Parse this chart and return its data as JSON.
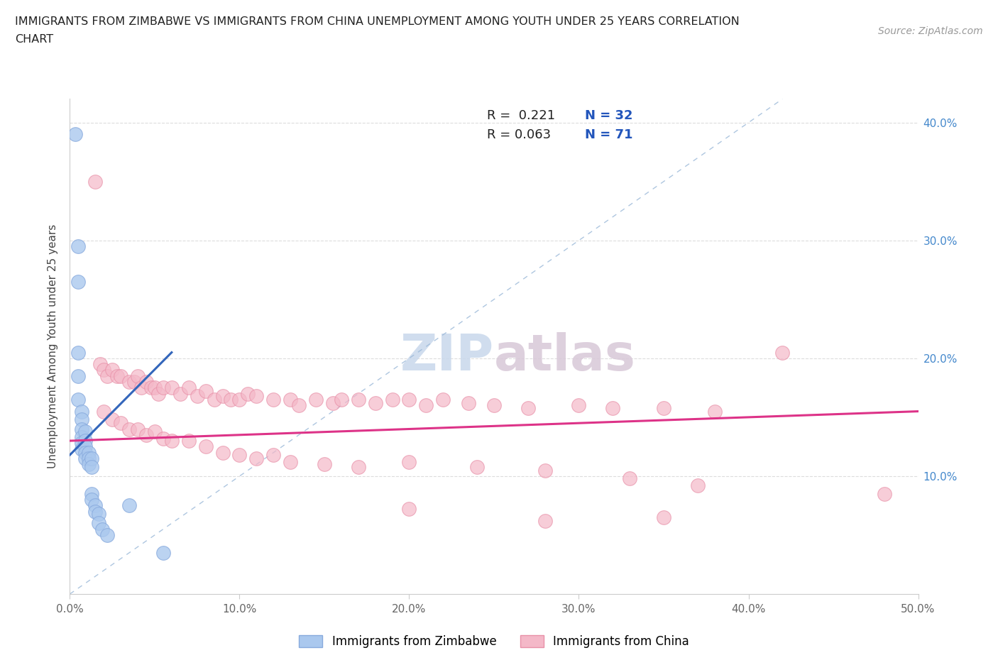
{
  "title_line1": "IMMIGRANTS FROM ZIMBABWE VS IMMIGRANTS FROM CHINA UNEMPLOYMENT AMONG YOUTH UNDER 25 YEARS CORRELATION",
  "title_line2": "CHART",
  "source_text": "Source: ZipAtlas.com",
  "ylabel": "Unemployment Among Youth under 25 years",
  "xlim": [
    0.0,
    0.5
  ],
  "ylim": [
    0.0,
    0.42
  ],
  "x_tick_vals": [
    0.0,
    0.1,
    0.2,
    0.3,
    0.4,
    0.5
  ],
  "x_tick_labels": [
    "0.0%",
    "10.0%",
    "20.0%",
    "30.0%",
    "40.0%",
    "50.0%"
  ],
  "y_tick_vals": [
    0.0,
    0.1,
    0.2,
    0.3,
    0.4
  ],
  "y_tick_labels": [
    "",
    "10.0%",
    "20.0%",
    "30.0%",
    "40.0%"
  ],
  "color_zimbabwe_fill": "#aac8ee",
  "color_zimbabwe_edge": "#88aadd",
  "color_china_fill": "#f4b8c8",
  "color_china_edge": "#e890a8",
  "color_line_zimbabwe": "#3366bb",
  "color_line_china": "#dd3388",
  "color_diagonal": "#9ab8d8",
  "color_grid": "#dddddd",
  "watermark_color": "#dce8f4",
  "zimbabwe_scatter": [
    [
      0.003,
      0.39
    ],
    [
      0.005,
      0.295
    ],
    [
      0.005,
      0.265
    ],
    [
      0.005,
      0.205
    ],
    [
      0.005,
      0.185
    ],
    [
      0.005,
      0.165
    ],
    [
      0.007,
      0.155
    ],
    [
      0.007,
      0.148
    ],
    [
      0.007,
      0.14
    ],
    [
      0.007,
      0.133
    ],
    [
      0.007,
      0.128
    ],
    [
      0.007,
      0.123
    ],
    [
      0.009,
      0.138
    ],
    [
      0.009,
      0.13
    ],
    [
      0.009,
      0.125
    ],
    [
      0.009,
      0.12
    ],
    [
      0.009,
      0.115
    ],
    [
      0.011,
      0.12
    ],
    [
      0.011,
      0.115
    ],
    [
      0.011,
      0.11
    ],
    [
      0.013,
      0.115
    ],
    [
      0.013,
      0.108
    ],
    [
      0.013,
      0.085
    ],
    [
      0.013,
      0.08
    ],
    [
      0.015,
      0.075
    ],
    [
      0.015,
      0.07
    ],
    [
      0.017,
      0.068
    ],
    [
      0.017,
      0.06
    ],
    [
      0.019,
      0.055
    ],
    [
      0.022,
      0.05
    ],
    [
      0.035,
      0.075
    ],
    [
      0.055,
      0.035
    ]
  ],
  "china_scatter": [
    [
      0.015,
      0.35
    ],
    [
      0.018,
      0.195
    ],
    [
      0.02,
      0.19
    ],
    [
      0.022,
      0.185
    ],
    [
      0.025,
      0.19
    ],
    [
      0.028,
      0.185
    ],
    [
      0.03,
      0.185
    ],
    [
      0.035,
      0.18
    ],
    [
      0.038,
      0.18
    ],
    [
      0.04,
      0.185
    ],
    [
      0.042,
      0.175
    ],
    [
      0.045,
      0.18
    ],
    [
      0.048,
      0.175
    ],
    [
      0.05,
      0.175
    ],
    [
      0.052,
      0.17
    ],
    [
      0.055,
      0.175
    ],
    [
      0.06,
      0.175
    ],
    [
      0.065,
      0.17
    ],
    [
      0.07,
      0.175
    ],
    [
      0.075,
      0.168
    ],
    [
      0.08,
      0.172
    ],
    [
      0.085,
      0.165
    ],
    [
      0.09,
      0.168
    ],
    [
      0.095,
      0.165
    ],
    [
      0.1,
      0.165
    ],
    [
      0.105,
      0.17
    ],
    [
      0.11,
      0.168
    ],
    [
      0.12,
      0.165
    ],
    [
      0.13,
      0.165
    ],
    [
      0.135,
      0.16
    ],
    [
      0.145,
      0.165
    ],
    [
      0.155,
      0.162
    ],
    [
      0.16,
      0.165
    ],
    [
      0.17,
      0.165
    ],
    [
      0.18,
      0.162
    ],
    [
      0.19,
      0.165
    ],
    [
      0.2,
      0.165
    ],
    [
      0.21,
      0.16
    ],
    [
      0.22,
      0.165
    ],
    [
      0.235,
      0.162
    ],
    [
      0.25,
      0.16
    ],
    [
      0.27,
      0.158
    ],
    [
      0.3,
      0.16
    ],
    [
      0.32,
      0.158
    ],
    [
      0.35,
      0.158
    ],
    [
      0.38,
      0.155
    ],
    [
      0.42,
      0.205
    ],
    [
      0.02,
      0.155
    ],
    [
      0.025,
      0.148
    ],
    [
      0.03,
      0.145
    ],
    [
      0.035,
      0.14
    ],
    [
      0.04,
      0.14
    ],
    [
      0.045,
      0.135
    ],
    [
      0.05,
      0.138
    ],
    [
      0.055,
      0.132
    ],
    [
      0.06,
      0.13
    ],
    [
      0.07,
      0.13
    ],
    [
      0.08,
      0.125
    ],
    [
      0.09,
      0.12
    ],
    [
      0.1,
      0.118
    ],
    [
      0.11,
      0.115
    ],
    [
      0.12,
      0.118
    ],
    [
      0.13,
      0.112
    ],
    [
      0.15,
      0.11
    ],
    [
      0.17,
      0.108
    ],
    [
      0.2,
      0.112
    ],
    [
      0.24,
      0.108
    ],
    [
      0.28,
      0.105
    ],
    [
      0.33,
      0.098
    ],
    [
      0.37,
      0.092
    ],
    [
      0.2,
      0.072
    ],
    [
      0.35,
      0.065
    ],
    [
      0.48,
      0.085
    ],
    [
      0.28,
      0.062
    ]
  ],
  "zim_line_x": [
    0.0,
    0.06
  ],
  "zim_line_y": [
    0.118,
    0.205
  ],
  "china_line_x": [
    0.0,
    0.5
  ],
  "china_line_y": [
    0.13,
    0.155
  ],
  "diag_line_x": [
    0.0,
    0.42
  ],
  "diag_line_y": [
    0.0,
    0.42
  ]
}
